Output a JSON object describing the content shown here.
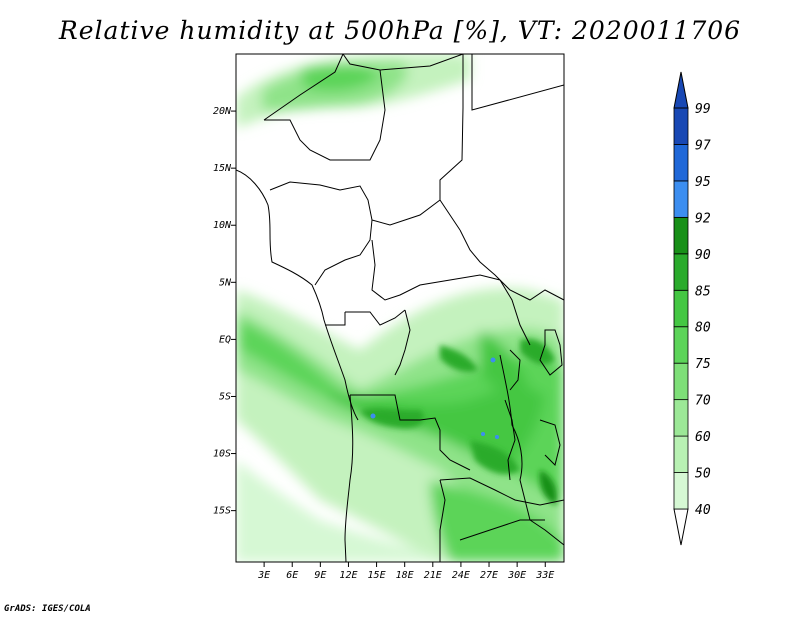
{
  "title": "Relative humidity at 500hPa [%], VT: 2020011706",
  "footer": "GrADS: IGES/COLA",
  "colors": {
    "c40": "#f0fdef",
    "c50": "#d6f8d4",
    "c60": "#b8f1b3",
    "c70": "#9ce897",
    "c75": "#7edf78",
    "c80": "#5cd459",
    "c85": "#44c743",
    "c90": "#2aab2c",
    "c92": "#189018",
    "c95": "#3c8ef0",
    "c97": "#2068d8",
    "c99": "#1848b4"
  },
  "chart_data": {
    "type": "heatmap",
    "title": "Relative humidity at 500hPa [%], VT: 2020011706",
    "xlim": [
      0,
      35
    ],
    "ylim": [
      -19.5,
      25
    ],
    "x_ticks": [
      {
        "value": 3,
        "label": "3E"
      },
      {
        "value": 6,
        "label": "6E"
      },
      {
        "value": 9,
        "label": "9E"
      },
      {
        "value": 12,
        "label": "12E"
      },
      {
        "value": 15,
        "label": "15E"
      },
      {
        "value": 18,
        "label": "18E"
      },
      {
        "value": 21,
        "label": "21E"
      },
      {
        "value": 24,
        "label": "24E"
      },
      {
        "value": 27,
        "label": "27E"
      },
      {
        "value": 30,
        "label": "30E"
      },
      {
        "value": 33,
        "label": "33E"
      }
    ],
    "y_ticks": [
      {
        "value": 20,
        "label": "20N"
      },
      {
        "value": 15,
        "label": "15N"
      },
      {
        "value": 10,
        "label": "10N"
      },
      {
        "value": 5,
        "label": "5N"
      },
      {
        "value": 0,
        "label": "EQ"
      },
      {
        "value": -5,
        "label": "5S"
      },
      {
        "value": -10,
        "label": "10S"
      },
      {
        "value": -15,
        "label": "15S"
      }
    ],
    "colorbar_levels": [
      "40",
      "50",
      "60",
      "70",
      "75",
      "80",
      "85",
      "90",
      "92",
      "95",
      "97",
      "99"
    ]
  }
}
